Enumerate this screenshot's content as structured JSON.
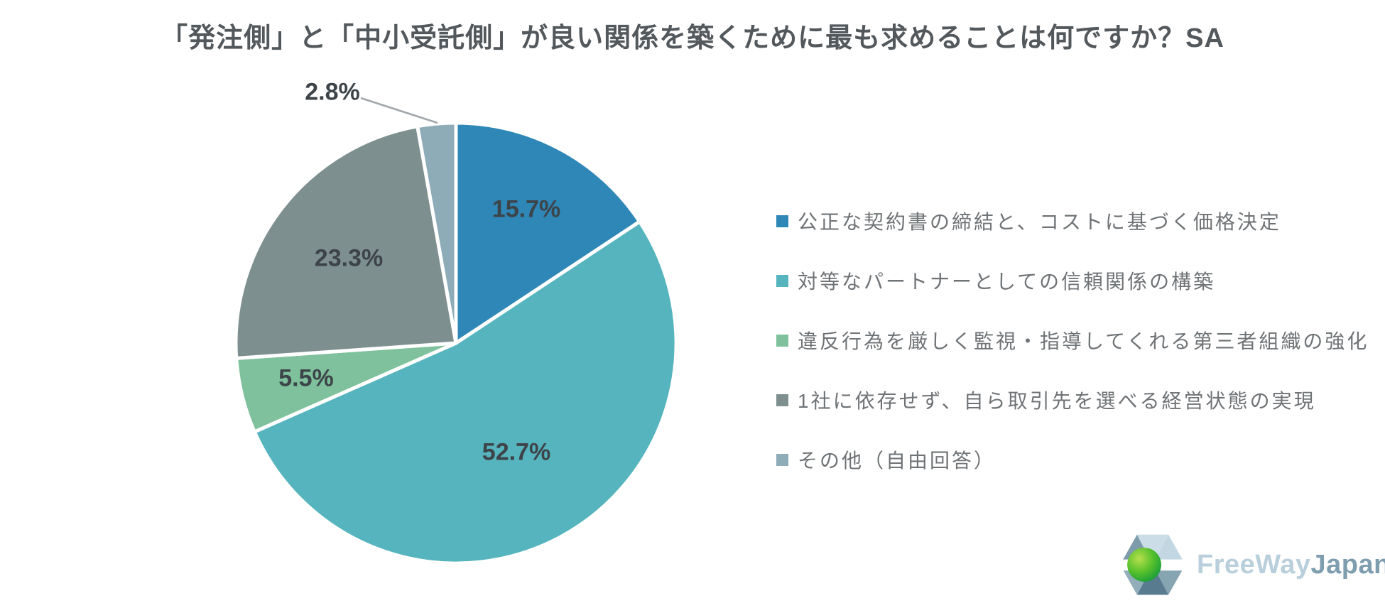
{
  "title": "「発注側」と「中小受託側」が良い関係を築くために最も求めることは何ですか？SA",
  "chart_data": {
    "type": "pie",
    "title": "「発注側」と「中小受託側」が良い関係を築くために最も求めることは何ですか？SA",
    "direction": "clockwise",
    "start_angle_deg": 0,
    "legend_position": "right",
    "slices": [
      {
        "label": "公正な契約書の締結と、コストに基づく価格決定",
        "value": 15.7,
        "display": "15.7%",
        "color": "#2e87b7"
      },
      {
        "label": "対等なパートナーとしての信頼関係の構築",
        "value": 52.7,
        "display": "52.7%",
        "color": "#55b4bd"
      },
      {
        "label": "違反行為を厳しく監視・指導してくれる第三者組織の強化",
        "value": 5.5,
        "display": "5.5%",
        "color": "#7ec19c"
      },
      {
        "label": "1社に依存せず、自ら取引先を選べる経営状態の実現",
        "value": 23.3,
        "display": "23.3%",
        "color": "#7e8f8f"
      },
      {
        "label": "その他（自由回答）",
        "value": 2.8,
        "display": "2.8%",
        "color": "#8eacb8"
      }
    ]
  },
  "logo": {
    "text_primary": "FreeWay",
    "text_secondary": "Japan",
    "text_primary_color": "#b9cfdb",
    "text_secondary_color": "#7e9dae"
  },
  "colors": {
    "background": "#ffffff",
    "title_text": "#53585c",
    "slice_label_text": "#3d4449",
    "legend_text": "#6f7376",
    "leader_line": "#a0a6aa",
    "slice_divider": "#ffffff"
  }
}
